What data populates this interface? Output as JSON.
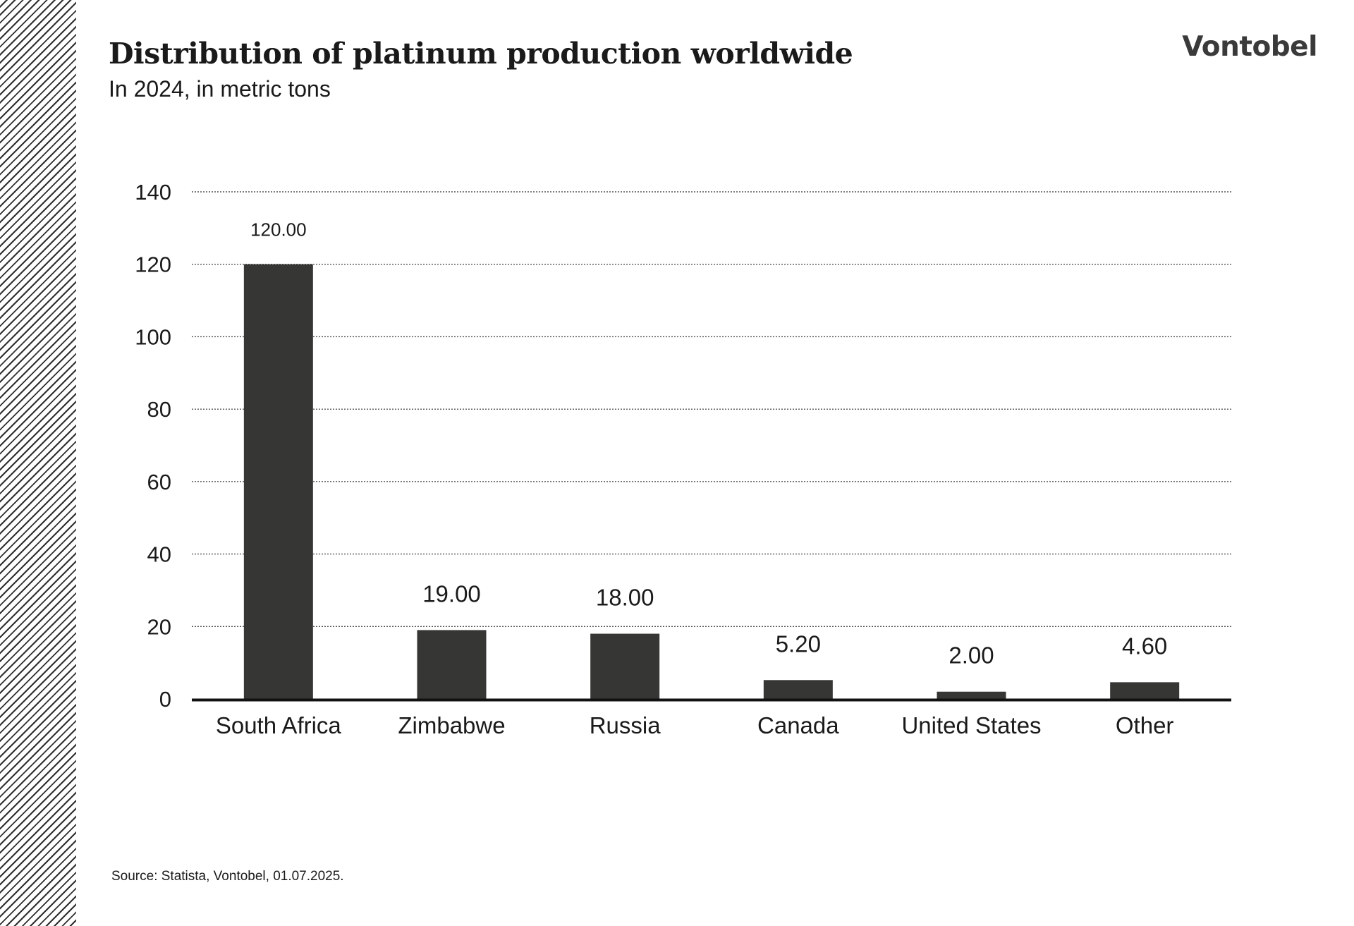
{
  "header": {
    "title": "Distribution of platinum production worldwide",
    "subtitle": "In 2024, in metric tons",
    "brand": "Vontobel"
  },
  "footer": {
    "source": "Source: Statista, Vontobel, 01.07.2025."
  },
  "colors": {
    "bar": "#363735",
    "grid": "#555555",
    "axis": "#111111",
    "text": "#1a1a1a"
  },
  "chart_data": {
    "type": "bar",
    "categories": [
      "South Africa",
      "Zimbabwe",
      "Russia",
      "Canada",
      "United States",
      "Other"
    ],
    "values": [
      120,
      19,
      18,
      5.2,
      2,
      4.6
    ],
    "value_labels": [
      "120.00",
      "19.00",
      "18.00",
      "5.20",
      "2.00",
      "4.60"
    ],
    "ylim": [
      0,
      140
    ],
    "yticks": [
      0,
      20,
      40,
      60,
      80,
      100,
      120,
      140
    ],
    "grid": "dotted-horizontal",
    "legend": "none"
  }
}
